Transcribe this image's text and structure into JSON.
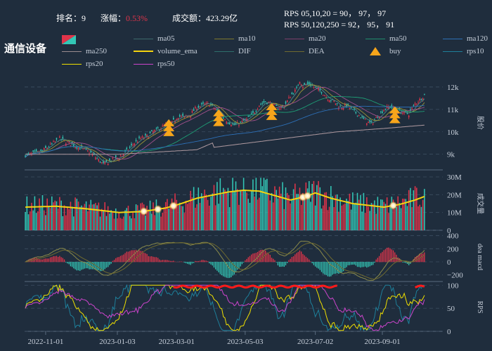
{
  "header": {
    "rank_label": "排名：",
    "rank_value": "9",
    "change_label": "涨幅：",
    "change_value": "0.53%",
    "turnover_label": "成交额：",
    "turnover_value": "423.29亿",
    "rps_line1": "RPS 05,10,20 = 90， 97， 97",
    "rps_line2": "RPS 50,120,250 = 92， 95， 91"
  },
  "title": "通信设备",
  "colors": {
    "background": "#1f2d3d",
    "up": "#e0344a",
    "down": "#33c7b6",
    "volume_ema": "#f5d40f",
    "buy": "#f7a51b",
    "highlight_red": "#ff1a1a"
  },
  "legend": [
    {
      "label": "ma05",
      "color": "#3d6a6c",
      "type": "line"
    },
    {
      "label": "ma10",
      "color": "#7f7a2c",
      "type": "line"
    },
    {
      "label": "ma20",
      "color": "#7e3f6b",
      "type": "line"
    },
    {
      "label": "ma50",
      "color": "#1e8f6e",
      "type": "line"
    },
    {
      "label": "ma120",
      "color": "#2d6fb6",
      "type": "line"
    },
    {
      "label": "ma250",
      "color": "#9a8c8f",
      "type": "line"
    },
    {
      "label": "volume_ema",
      "color": "#f5d40f",
      "type": "thick"
    },
    {
      "label": "DIF",
      "color": "#2e6e6c",
      "type": "line"
    },
    {
      "label": "DEA",
      "color": "#6f6a30",
      "type": "line"
    },
    {
      "label": "buy",
      "color": "#f7a51b",
      "type": "marker"
    },
    {
      "label": "rps10",
      "color": "#1e7f9a",
      "type": "line"
    },
    {
      "label": "rps20",
      "color": "#f0e000",
      "type": "line"
    },
    {
      "label": "rps50",
      "color": "#cc44cc",
      "type": "line"
    }
  ],
  "chart_data": {
    "type": "candlestick",
    "x_tick_labels": [
      "2022-11-01",
      "2023-01-03",
      "2023-03-01",
      "2023-05-03",
      "2023-07-02",
      "2023-09-01"
    ],
    "price": {
      "ylabel": "股价",
      "y_ticks": [
        9000,
        10000,
        11000,
        12000
      ],
      "y_tick_labels": [
        "9k",
        "10k",
        "11k",
        "12k"
      ],
      "ylim": [
        8300,
        12500
      ],
      "close_path": [
        [
          0,
          8950
        ],
        [
          6,
          9050
        ],
        [
          10,
          9100
        ],
        [
          14,
          9300
        ],
        [
          18,
          9500
        ],
        [
          22,
          9700
        ],
        [
          26,
          9550
        ],
        [
          30,
          9450
        ],
        [
          34,
          9300
        ],
        [
          38,
          9200
        ],
        [
          42,
          9050
        ],
        [
          46,
          8800
        ],
        [
          50,
          8550
        ],
        [
          54,
          8700
        ],
        [
          58,
          8800
        ],
        [
          62,
          8950
        ],
        [
          66,
          9200
        ],
        [
          70,
          9500
        ],
        [
          74,
          9700
        ],
        [
          78,
          9800
        ],
        [
          82,
          10000
        ],
        [
          86,
          10150
        ],
        [
          90,
          10300
        ],
        [
          94,
          10400
        ],
        [
          98,
          10700
        ],
        [
          102,
          10650
        ],
        [
          106,
          10800
        ],
        [
          110,
          11100
        ],
        [
          114,
          11200
        ],
        [
          118,
          11250
        ],
        [
          122,
          11000
        ],
        [
          126,
          10700
        ],
        [
          130,
          10450
        ],
        [
          134,
          10300
        ],
        [
          138,
          10400
        ],
        [
          142,
          10550
        ],
        [
          146,
          10800
        ],
        [
          150,
          11200
        ],
        [
          154,
          11350
        ],
        [
          158,
          11250
        ],
        [
          162,
          11050
        ],
        [
          166,
          11150
        ],
        [
          170,
          11600
        ],
        [
          174,
          11900
        ],
        [
          176,
          12300
        ],
        [
          178,
          12050
        ],
        [
          182,
          12150
        ],
        [
          186,
          11950
        ],
        [
          190,
          11800
        ],
        [
          194,
          11500
        ],
        [
          198,
          11350
        ],
        [
          202,
          11100
        ],
        [
          206,
          11200
        ],
        [
          210,
          10950
        ],
        [
          214,
          10750
        ],
        [
          218,
          10500
        ],
        [
          222,
          10350
        ],
        [
          226,
          10700
        ],
        [
          230,
          11000
        ],
        [
          234,
          11150
        ],
        [
          238,
          11000
        ],
        [
          242,
          10850
        ],
        [
          246,
          10800
        ],
        [
          250,
          11250
        ],
        [
          254,
          11500
        ],
        [
          256,
          11650
        ]
      ],
      "ma250_path": [
        [
          0,
          9000
        ],
        [
          60,
          9000
        ],
        [
          110,
          9200
        ],
        [
          120,
          9500
        ],
        [
          120,
          9300
        ],
        [
          160,
          9650
        ],
        [
          200,
          10000
        ],
        [
          230,
          10150
        ],
        [
          256,
          10300
        ]
      ],
      "buy_signal_indices": [
        92,
        124,
        158,
        237
      ]
    },
    "volume": {
      "ylabel": "成交量",
      "y_ticks": [
        0,
        10000000,
        20000000,
        30000000
      ],
      "y_tick_labels": [
        "0",
        "10M",
        "20M",
        "30M"
      ],
      "ylim": [
        0,
        30000000
      ],
      "ema_path": [
        [
          0,
          13000000
        ],
        [
          20,
          13500000
        ],
        [
          40,
          12000000
        ],
        [
          60,
          10000000
        ],
        [
          75,
          10500000
        ],
        [
          90,
          12500000
        ],
        [
          100,
          15000000
        ],
        [
          110,
          18000000
        ],
        [
          130,
          21500000
        ],
        [
          140,
          22500000
        ],
        [
          150,
          22000000
        ],
        [
          160,
          19500000
        ],
        [
          170,
          17000000
        ],
        [
          180,
          19000000
        ],
        [
          186,
          21000000
        ],
        [
          196,
          18000000
        ],
        [
          210,
          15000000
        ],
        [
          220,
          14000000
        ],
        [
          230,
          13000000
        ],
        [
          240,
          14500000
        ],
        [
          250,
          17000000
        ],
        [
          256,
          19000000
        ]
      ],
      "highlight_indices": [
        76,
        85,
        95,
        178,
        181,
        236
      ]
    },
    "macd": {
      "ylabel": "dea macd",
      "y_ticks": [
        -200,
        0,
        200,
        400
      ],
      "y_tick_labels": [
        "−200",
        "0",
        "200",
        "400"
      ],
      "ylim": [
        -300,
        450
      ]
    },
    "rps": {
      "ylabel": "RPS",
      "y_ticks": [
        0,
        50,
        100
      ],
      "y_tick_labels": [
        "0",
        "50",
        "100"
      ],
      "ylim": [
        0,
        105
      ],
      "high_band_ranges": [
        [
          95,
          200
        ],
        [
          250,
          256
        ]
      ]
    }
  }
}
